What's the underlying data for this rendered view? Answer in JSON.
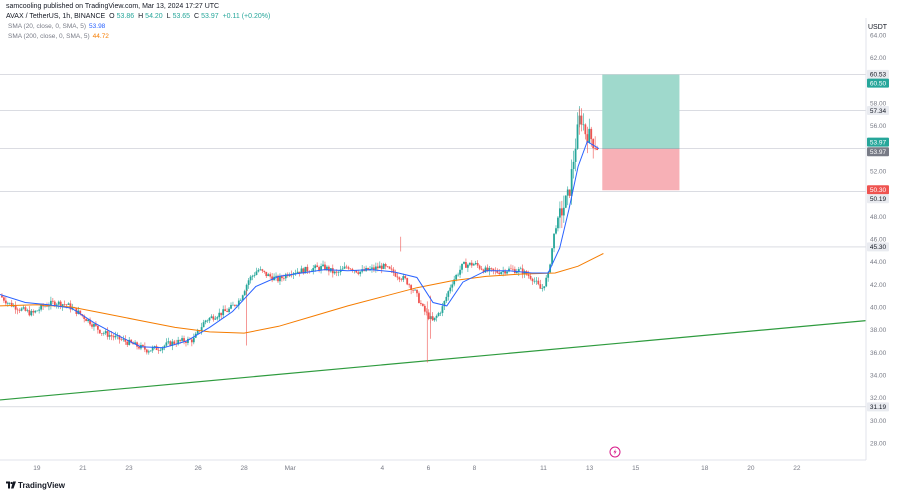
{
  "header": {
    "published": "samcooling published on TradingView.com, Mar 13, 2024 17:27 UTC"
  },
  "symbol": {
    "title": "AVAX / TetherUS, 1h, BINANCE",
    "ohlc_label_o": "O",
    "ohlc_o": "53.86",
    "ohlc_label_h": "H",
    "ohlc_h": "54.20",
    "ohlc_label_l": "L",
    "ohlc_l": "53.65",
    "ohlc_label_c": "C",
    "ohlc_c": "53.97",
    "change": "+0.11 (+0.20%)"
  },
  "indicators": [
    {
      "label": "SMA (20, close, 0, SMA, 5)",
      "value": "53.98",
      "color": "#2962ff"
    },
    {
      "label": "SMA (200, close, 0, SMA, 5)",
      "value": "44.72",
      "color": "#f57c00"
    }
  ],
  "currency": "USDT",
  "brand": "TradingView",
  "colors": {
    "up": "#26a69a",
    "down": "#ef5350",
    "sma20": "#2962ff",
    "sma200": "#f57c00",
    "trendline": "#2e9b3e",
    "target_zone": "#9fd9cc",
    "stop_zone": "#f7b0b6"
  },
  "chart_data": {
    "type": "candlestick",
    "symbol": "AVAX / TetherUS",
    "interval": "1h",
    "ylim": [
      26.5,
      65.5
    ],
    "y_ticks": [
      "64.00",
      "62.00",
      "58.00",
      "56.00",
      "52.00",
      "48.00",
      "46.00",
      "44.00",
      "42.00",
      "40.00",
      "38.00",
      "36.00",
      "34.00",
      "32.00",
      "30.00",
      "28.00"
    ],
    "x_ticks": [
      {
        "label": "19",
        "day": 19
      },
      {
        "label": "21",
        "day": 21
      },
      {
        "label": "23",
        "day": 23
      },
      {
        "label": "26",
        "day": 26
      },
      {
        "label": "28",
        "day": 28
      },
      {
        "label": "Mar",
        "day": 30
      },
      {
        "label": "4",
        "day": 34
      },
      {
        "label": "6",
        "day": 36
      },
      {
        "label": "8",
        "day": 38
      },
      {
        "label": "11",
        "day": 41
      },
      {
        "label": "13",
        "day": 43
      },
      {
        "label": "15",
        "day": 45
      },
      {
        "label": "18",
        "day": 48
      },
      {
        "label": "20",
        "day": 50
      },
      {
        "label": "22",
        "day": 52
      }
    ],
    "x_range_days": [
      17.4,
      55.0
    ],
    "price_path": [
      [
        17.4,
        41.0
      ],
      [
        17.8,
        40.3
      ],
      [
        18.3,
        39.8
      ],
      [
        18.8,
        39.4
      ],
      [
        19.3,
        40.1
      ],
      [
        19.8,
        40.4
      ],
      [
        20.3,
        40.2
      ],
      [
        20.8,
        39.5
      ],
      [
        21.3,
        38.7
      ],
      [
        21.8,
        37.8
      ],
      [
        22.3,
        37.4
      ],
      [
        22.8,
        37.0
      ],
      [
        23.3,
        36.6
      ],
      [
        23.8,
        36.2
      ],
      [
        24.3,
        36.4
      ],
      [
        24.8,
        36.8
      ],
      [
        25.3,
        37.0
      ],
      [
        25.8,
        37.1
      ],
      [
        26.3,
        38.8
      ],
      [
        26.8,
        39.3
      ],
      [
        27.3,
        39.7
      ],
      [
        27.8,
        40.6
      ],
      [
        28.2,
        42.4
      ],
      [
        28.6,
        43.3
      ],
      [
        29.0,
        42.8
      ],
      [
        29.5,
        42.4
      ],
      [
        30.0,
        43.1
      ],
      [
        30.5,
        43.2
      ],
      [
        31.0,
        43.4
      ],
      [
        31.5,
        43.5
      ],
      [
        32.0,
        42.9
      ],
      [
        32.5,
        43.6
      ],
      [
        33.0,
        43.1
      ],
      [
        33.5,
        43.3
      ],
      [
        34.0,
        43.6
      ],
      [
        34.5,
        43.0
      ],
      [
        35.0,
        42.4
      ],
      [
        35.4,
        41.4
      ],
      [
        35.8,
        39.7
      ],
      [
        36.2,
        38.7
      ],
      [
        36.6,
        39.9
      ],
      [
        37.0,
        42.1
      ],
      [
        37.5,
        43.7
      ],
      [
        38.0,
        43.8
      ],
      [
        38.5,
        43.2
      ],
      [
        39.0,
        43.1
      ],
      [
        39.5,
        43.3
      ],
      [
        40.0,
        43.2
      ],
      [
        40.5,
        42.6
      ],
      [
        40.9,
        41.5
      ],
      [
        41.2,
        42.8
      ],
      [
        41.5,
        47.0
      ],
      [
        41.8,
        48.5
      ],
      [
        42.1,
        49.9
      ],
      [
        42.4,
        54.5
      ],
      [
        42.6,
        57.0
      ],
      [
        42.8,
        55.5
      ],
      [
        43.1,
        54.8
      ],
      [
        43.4,
        53.97
      ]
    ],
    "sma20_path": [
      [
        17.4,
        41.1
      ],
      [
        18.5,
        40.4
      ],
      [
        19.5,
        40.2
      ],
      [
        20.5,
        39.9
      ],
      [
        21.5,
        38.6
      ],
      [
        22.5,
        37.5
      ],
      [
        23.5,
        36.5
      ],
      [
        24.5,
        36.4
      ],
      [
        25.5,
        37.0
      ],
      [
        26.5,
        38.2
      ],
      [
        27.5,
        39.6
      ],
      [
        28.5,
        41.8
      ],
      [
        29.5,
        42.7
      ],
      [
        30.5,
        43.0
      ],
      [
        31.5,
        43.3
      ],
      [
        32.5,
        43.2
      ],
      [
        33.5,
        43.3
      ],
      [
        34.5,
        43.1
      ],
      [
        35.5,
        42.6
      ],
      [
        36.2,
        40.4
      ],
      [
        36.8,
        40.1
      ],
      [
        37.5,
        42.2
      ],
      [
        38.5,
        43.2
      ],
      [
        39.5,
        43.2
      ],
      [
        40.5,
        43.0
      ],
      [
        41.2,
        43.0
      ],
      [
        41.7,
        45.2
      ],
      [
        42.1,
        48.6
      ],
      [
        42.5,
        52.4
      ],
      [
        42.9,
        54.6
      ],
      [
        43.4,
        53.98
      ]
    ],
    "sma200_path": [
      [
        17.4,
        40.1
      ],
      [
        19.0,
        40.2
      ],
      [
        20.5,
        40.0
      ],
      [
        22.0,
        39.4
      ],
      [
        23.5,
        38.8
      ],
      [
        25.0,
        38.2
      ],
      [
        26.5,
        37.8
      ],
      [
        28.0,
        37.7
      ],
      [
        29.5,
        38.3
      ],
      [
        31.0,
        39.2
      ],
      [
        32.5,
        40.1
      ],
      [
        34.0,
        40.9
      ],
      [
        35.5,
        41.7
      ],
      [
        37.0,
        42.3
      ],
      [
        38.5,
        42.7
      ],
      [
        40.0,
        42.9
      ],
      [
        41.5,
        43.0
      ],
      [
        42.5,
        43.6
      ],
      [
        43.6,
        44.72
      ]
    ],
    "trendline": {
      "from": [
        17.4,
        31.8
      ],
      "to": [
        55.0,
        38.8
      ]
    },
    "horizontal_lines": [
      60.53,
      57.34,
      53.97,
      50.19,
      45.3,
      31.19
    ],
    "long_position": {
      "from_day": 43.55,
      "to_day": 46.9,
      "entry": 53.97,
      "target": 60.5,
      "stop": 50.3
    },
    "price_tags": [
      {
        "value": "60.53",
        "price": 60.53,
        "style": "line"
      },
      {
        "value": "60.50",
        "price": 59.75,
        "style": "target"
      },
      {
        "value": "57.34",
        "price": 57.34,
        "style": "line"
      },
      {
        "value": "53.97",
        "price": 54.55,
        "style": "entry"
      },
      {
        "value": "53.97",
        "price": 53.7,
        "style": "last"
      },
      {
        "value": "50.30",
        "price": 50.35,
        "style": "stop"
      },
      {
        "value": "50.19",
        "price": 49.55,
        "style": "line"
      },
      {
        "value": "45.30",
        "price": 45.3,
        "style": "line"
      },
      {
        "value": "31.19",
        "price": 31.19,
        "style": "line"
      }
    ]
  }
}
